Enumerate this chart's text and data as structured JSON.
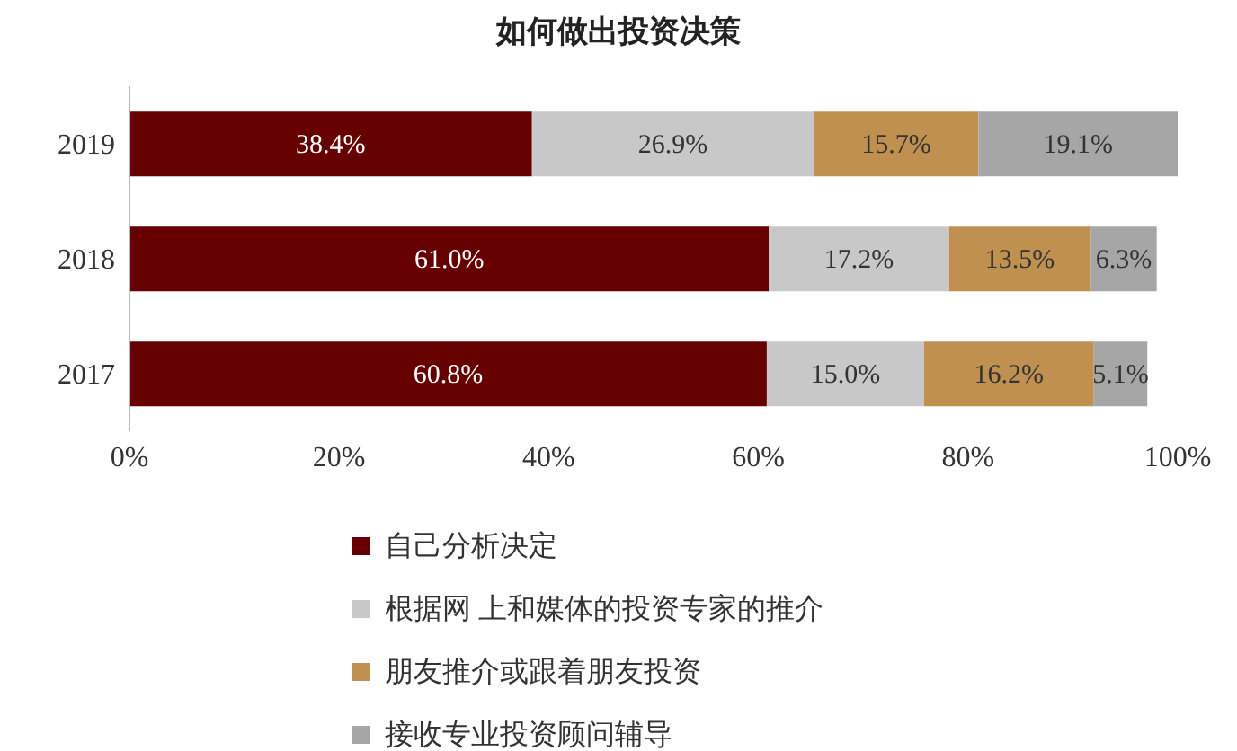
{
  "chart_data": {
    "type": "bar",
    "title": "如何做出投资决策",
    "orientation": "horizontal",
    "stacked": true,
    "categories": [
      "2019",
      "2018",
      "2017"
    ],
    "series": [
      {
        "name": "自己分析决定",
        "color": "#660000",
        "values": [
          38.4,
          61.0,
          60.8
        ],
        "value_labels": [
          "38.4%",
          "61.0%",
          "60.8%"
        ]
      },
      {
        "name": "根据网 上和媒体的投资专家的推介",
        "color": "#c8c8c8",
        "values": [
          26.9,
          17.2,
          15.0
        ],
        "value_labels": [
          "26.9%",
          "17.2%",
          "15.0%"
        ]
      },
      {
        "name": "朋友推介或跟着朋友投资",
        "color": "#c09050",
        "values": [
          15.7,
          13.5,
          16.2
        ],
        "value_labels": [
          "15.7%",
          "13.5%",
          "16.2%"
        ]
      },
      {
        "name": "接收专业投资顾问辅导",
        "color": "#a6a6a6",
        "values": [
          19.1,
          6.3,
          5.1
        ],
        "value_labels": [
          "19.1%",
          "6.3%",
          "5.1%"
        ]
      }
    ],
    "xlim": [
      0,
      100
    ],
    "xticks": [
      {
        "value": 0,
        "label": "0%"
      },
      {
        "value": 20,
        "label": "20%"
      },
      {
        "value": 40,
        "label": "40%"
      },
      {
        "value": 60,
        "label": "60%"
      },
      {
        "value": 80,
        "label": "80%"
      },
      {
        "value": 100,
        "label": "100%"
      }
    ],
    "grid": false,
    "legend": "bottom"
  }
}
